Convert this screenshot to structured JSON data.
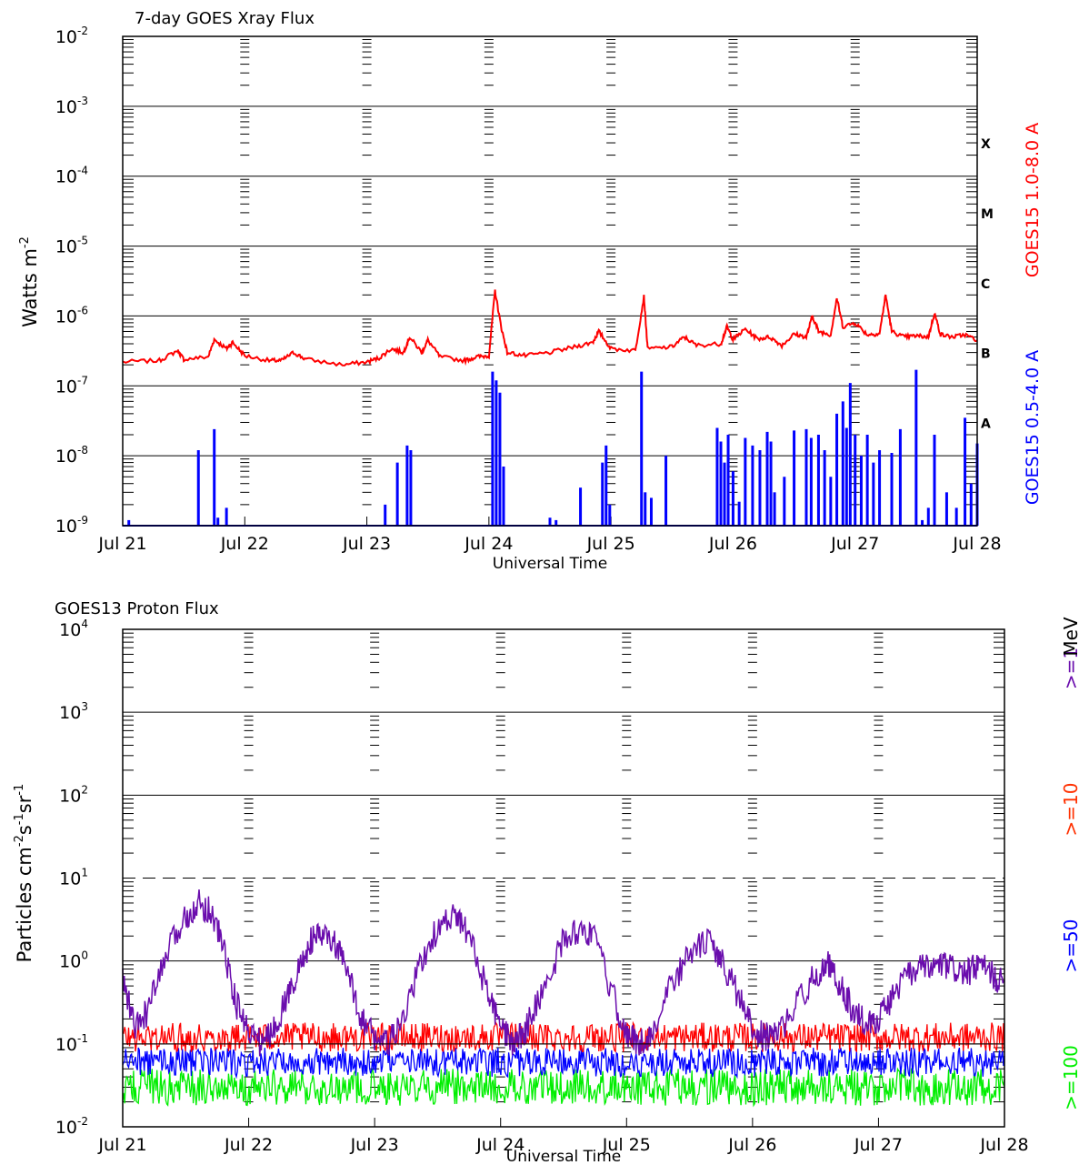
{
  "chart_data": [
    {
      "type": "line",
      "title": "7-day GOES Xray Flux",
      "ylabel": "Watts m",
      "ylabel_sup": "-2",
      "xlabel": "Universal Time",
      "yscale": "log",
      "ylim": [
        1e-09,
        0.01
      ],
      "xlim": [
        "Jul 21",
        "Jul 28"
      ],
      "x_tick_labels": [
        "Jul 21",
        "Jul 22",
        "Jul 23",
        "Jul 24",
        "Jul 25",
        "Jul 26",
        "Jul 27",
        "Jul 28"
      ],
      "y_tick_labels": [
        {
          "base": "10",
          "exp": "-2"
        },
        {
          "base": "10",
          "exp": "-3"
        },
        {
          "base": "10",
          "exp": "-4"
        },
        {
          "base": "10",
          "exp": "-5"
        },
        {
          "base": "10",
          "exp": "-6"
        },
        {
          "base": "10",
          "exp": "-7"
        },
        {
          "base": "10",
          "exp": "-8"
        },
        {
          "base": "10",
          "exp": "-9"
        }
      ],
      "flare_classes": [
        {
          "label": "X",
          "value": 0.0003
        },
        {
          "label": "M",
          "value": 3e-05
        },
        {
          "label": "C",
          "value": 3e-06
        },
        {
          "label": "B",
          "value": 3e-07
        },
        {
          "label": "A",
          "value": 3e-08
        }
      ],
      "series": [
        {
          "name": "GOES15 1.0-8.0 A",
          "color": "#ff0000",
          "style": "line",
          "points": [
            [
              0,
              2.2e-07
            ],
            [
              0.3,
              2.3e-07
            ],
            [
              0.45,
              3.2e-07
            ],
            [
              0.5,
              2.4e-07
            ],
            [
              0.7,
              2.6e-07
            ],
            [
              0.75,
              4.6e-07
            ],
            [
              0.85,
              3.4e-07
            ],
            [
              0.9,
              4.2e-07
            ],
            [
              1.0,
              2.7e-07
            ],
            [
              1.2,
              2.3e-07
            ],
            [
              1.3,
              2.3e-07
            ],
            [
              1.4,
              3e-07
            ],
            [
              1.5,
              2.4e-07
            ],
            [
              1.8,
              2e-07
            ],
            [
              2.0,
              2.2e-07
            ],
            [
              2.1,
              2.5e-07
            ],
            [
              2.2,
              3.4e-07
            ],
            [
              2.3,
              3e-07
            ],
            [
              2.35,
              5e-07
            ],
            [
              2.45,
              3e-07
            ],
            [
              2.5,
              4.5e-07
            ],
            [
              2.6,
              2.6e-07
            ],
            [
              2.8,
              2.3e-07
            ],
            [
              2.9,
              2.6e-07
            ],
            [
              3.0,
              2.7e-07
            ],
            [
              3.05,
              2.3e-06
            ],
            [
              3.1,
              7e-07
            ],
            [
              3.15,
              3e-07
            ],
            [
              3.3,
              2.7e-07
            ],
            [
              3.5,
              3e-07
            ],
            [
              3.7,
              3.6e-07
            ],
            [
              3.85,
              4.2e-07
            ],
            [
              3.9,
              6e-07
            ],
            [
              4.0,
              3.4e-07
            ],
            [
              4.2,
              3.2e-07
            ],
            [
              4.27,
              1.9e-06
            ],
            [
              4.3,
              3.4e-07
            ],
            [
              4.5,
              3.6e-07
            ],
            [
              4.6,
              5e-07
            ],
            [
              4.7,
              3.8e-07
            ],
            [
              4.9,
              4e-07
            ],
            [
              4.95,
              7e-07
            ],
            [
              5.0,
              4.6e-07
            ],
            [
              5.1,
              6.5e-07
            ],
            [
              5.2,
              4.7e-07
            ],
            [
              5.3,
              5e-07
            ],
            [
              5.4,
              3.8e-07
            ],
            [
              5.5,
              5.5e-07
            ],
            [
              5.6,
              5e-07
            ],
            [
              5.65,
              1e-06
            ],
            [
              5.7,
              6e-07
            ],
            [
              5.8,
              5.4e-07
            ],
            [
              5.85,
              1.8e-06
            ],
            [
              5.9,
              7e-07
            ],
            [
              6.0,
              8e-07
            ],
            [
              6.1,
              5.4e-07
            ],
            [
              6.2,
              5.6e-07
            ],
            [
              6.25,
              2e-06
            ],
            [
              6.3,
              6e-07
            ],
            [
              6.4,
              5e-07
            ],
            [
              6.5,
              5.2e-07
            ],
            [
              6.6,
              5e-07
            ],
            [
              6.65,
              1.1e-06
            ],
            [
              6.7,
              5.4e-07
            ],
            [
              6.8,
              5e-07
            ],
            [
              6.9,
              5.4e-07
            ],
            [
              7.0,
              4.5e-07
            ]
          ]
        },
        {
          "name": "GOES15 0.5-4.0 A",
          "color": "#0000ff",
          "style": "spikes",
          "baseline": 1e-09,
          "points": [
            [
              0.05,
              1.2e-09
            ],
            [
              0.62,
              1.2e-08
            ],
            [
              0.75,
              2.4e-08
            ],
            [
              0.78,
              1.3e-09
            ],
            [
              0.85,
              1.8e-09
            ],
            [
              2.15,
              2e-09
            ],
            [
              2.25,
              8e-09
            ],
            [
              2.33,
              1.4e-08
            ],
            [
              2.36,
              1.2e-08
            ],
            [
              3.03,
              1.6e-07
            ],
            [
              3.06,
              1.2e-07
            ],
            [
              3.09,
              8e-08
            ],
            [
              3.12,
              7e-09
            ],
            [
              3.5,
              1.3e-09
            ],
            [
              3.55,
              1.2e-09
            ],
            [
              3.75,
              3.5e-09
            ],
            [
              3.93,
              8e-09
            ],
            [
              3.96,
              1.4e-08
            ],
            [
              3.99,
              2e-09
            ],
            [
              4.25,
              1.6e-07
            ],
            [
              4.28,
              3e-09
            ],
            [
              4.33,
              2.5e-09
            ],
            [
              4.45,
              1e-08
            ],
            [
              4.87,
              2.5e-08
            ],
            [
              4.9,
              1.6e-08
            ],
            [
              4.93,
              8e-09
            ],
            [
              4.96,
              2e-08
            ],
            [
              5.0,
              6e-09
            ],
            [
              5.05,
              2.2e-09
            ],
            [
              5.1,
              1.8e-08
            ],
            [
              5.16,
              1.4e-08
            ],
            [
              5.22,
              1.2e-08
            ],
            [
              5.28,
              2.2e-08
            ],
            [
              5.31,
              1.6e-08
            ],
            [
              5.34,
              3e-09
            ],
            [
              5.42,
              5e-09
            ],
            [
              5.5,
              2.3e-08
            ],
            [
              5.6,
              2.4e-08
            ],
            [
              5.64,
              1.8e-08
            ],
            [
              5.7,
              2e-08
            ],
            [
              5.75,
              1.2e-08
            ],
            [
              5.8,
              5e-09
            ],
            [
              5.85,
              4e-08
            ],
            [
              5.9,
              6e-08
            ],
            [
              5.93,
              2.5e-08
            ],
            [
              5.96,
              1.1e-07
            ],
            [
              6.0,
              2e-08
            ],
            [
              6.05,
              1e-08
            ],
            [
              6.1,
              2e-08
            ],
            [
              6.15,
              8e-09
            ],
            [
              6.2,
              1.2e-08
            ],
            [
              6.3,
              1.1e-08
            ],
            [
              6.37,
              2.4e-08
            ],
            [
              6.5,
              1.7e-07
            ],
            [
              6.55,
              1.2e-09
            ],
            [
              6.6,
              1.8e-09
            ],
            [
              6.65,
              2e-08
            ],
            [
              6.75,
              3e-09
            ],
            [
              6.83,
              1.8e-09
            ],
            [
              6.9,
              3.5e-08
            ],
            [
              6.95,
              4e-09
            ],
            [
              7.0,
              1.5e-08
            ]
          ]
        }
      ],
      "legend": [
        {
          "label": "GOES15 1.0-8.0 A",
          "color": "#ff0000"
        },
        {
          "label": "GOES15 0.5-4.0 A",
          "color": "#0000ff"
        }
      ],
      "grid": "horizontal at decades"
    },
    {
      "type": "line",
      "title": "GOES13 Proton Flux",
      "ylabel": "Particles cm",
      "ylabel_sup": "-2",
      "ylabel_mid": "s",
      "ylabel_sup2": "-1",
      "ylabel_mid2": "sr",
      "ylabel_sup3": "-1",
      "xlabel": "Universal Time",
      "yscale": "log",
      "ylim": [
        0.01,
        10000
      ],
      "xlim": [
        "Jul 21",
        "Jul 28"
      ],
      "x_tick_labels": [
        "Jul 21",
        "Jul 22",
        "Jul 23",
        "Jul 24",
        "Jul 25",
        "Jul 26",
        "Jul 27",
        "Jul 28"
      ],
      "y_tick_labels": [
        {
          "base": "10",
          "exp": "4"
        },
        {
          "base": "10",
          "exp": "3"
        },
        {
          "base": "10",
          "exp": "2"
        },
        {
          "base": "10",
          "exp": "1"
        },
        {
          "base": "10",
          "exp": "0"
        },
        {
          "base": "10",
          "exp": "-1"
        },
        {
          "base": "10",
          "exp": "-2"
        }
      ],
      "threshold": {
        "value": 10,
        "style": "dashed"
      },
      "series": [
        {
          "name": ">=1",
          "color": "#6a0dad",
          "style": "line",
          "points": [
            [
              0,
              0.6
            ],
            [
              0.1,
              0.15
            ],
            [
              0.2,
              0.25
            ],
            [
              0.35,
              1.2
            ],
            [
              0.5,
              3.5
            ],
            [
              0.6,
              5.0
            ],
            [
              0.7,
              4.0
            ],
            [
              0.8,
              1.5
            ],
            [
              0.9,
              0.3
            ],
            [
              1.0,
              0.15
            ],
            [
              1.1,
              0.1
            ],
            [
              1.2,
              0.15
            ],
            [
              1.3,
              0.35
            ],
            [
              1.4,
              0.8
            ],
            [
              1.5,
              1.8
            ],
            [
              1.6,
              2.0
            ],
            [
              1.7,
              1.5
            ],
            [
              1.8,
              0.6
            ],
            [
              1.9,
              0.2
            ],
            [
              2.0,
              0.12
            ],
            [
              2.1,
              0.1
            ],
            [
              2.2,
              0.15
            ],
            [
              2.35,
              0.8
            ],
            [
              2.5,
              2.5
            ],
            [
              2.65,
              3.5
            ],
            [
              2.75,
              2.0
            ],
            [
              2.9,
              0.4
            ],
            [
              3.0,
              0.15
            ],
            [
              3.1,
              0.1
            ],
            [
              3.2,
              0.15
            ],
            [
              3.35,
              0.5
            ],
            [
              3.5,
              1.8
            ],
            [
              3.65,
              2.5
            ],
            [
              3.75,
              1.8
            ],
            [
              3.9,
              0.35
            ],
            [
              4.0,
              0.13
            ],
            [
              4.1,
              0.1
            ],
            [
              4.2,
              0.13
            ],
            [
              4.35,
              0.5
            ],
            [
              4.5,
              1.2
            ],
            [
              4.65,
              1.8
            ],
            [
              4.75,
              1.0
            ],
            [
              4.9,
              0.35
            ],
            [
              5.0,
              0.15
            ],
            [
              5.1,
              0.12
            ],
            [
              5.2,
              0.13
            ],
            [
              5.35,
              0.3
            ],
            [
              5.5,
              0.7
            ],
            [
              5.6,
              0.9
            ],
            [
              5.7,
              0.5
            ],
            [
              5.8,
              0.25
            ],
            [
              5.9,
              0.18
            ],
            [
              6.0,
              0.2
            ],
            [
              6.1,
              0.35
            ],
            [
              6.2,
              0.6
            ],
            [
              6.3,
              0.8
            ],
            [
              6.4,
              0.8
            ],
            [
              6.5,
              0.9
            ],
            [
              6.6,
              0.8
            ],
            [
              6.7,
              0.7
            ],
            [
              6.8,
              0.9
            ],
            [
              6.9,
              0.7
            ],
            [
              7.0,
              0.5
            ]
          ]
        },
        {
          "name": ">=10",
          "color": "#ff0000",
          "style": "band",
          "low": 0.08,
          "high": 0.18
        },
        {
          "name": ">=50",
          "color": "#0000ff",
          "style": "band",
          "low": 0.04,
          "high": 0.09
        },
        {
          "name": ">=100",
          "color": "#00ee00",
          "style": "band",
          "low": 0.018,
          "high": 0.05
        }
      ],
      "legend": [
        {
          "label": ">=100",
          "color": "#00ee00"
        },
        {
          "label": ">=50",
          "color": "#0000ff"
        },
        {
          "label": ">=10",
          "color": "#ff3000"
        },
        {
          "label": ">=1",
          "color": "#6a0dad"
        },
        {
          "label": "MeV",
          "color": "#000000"
        }
      ],
      "grid": "horizontal at decades"
    }
  ]
}
